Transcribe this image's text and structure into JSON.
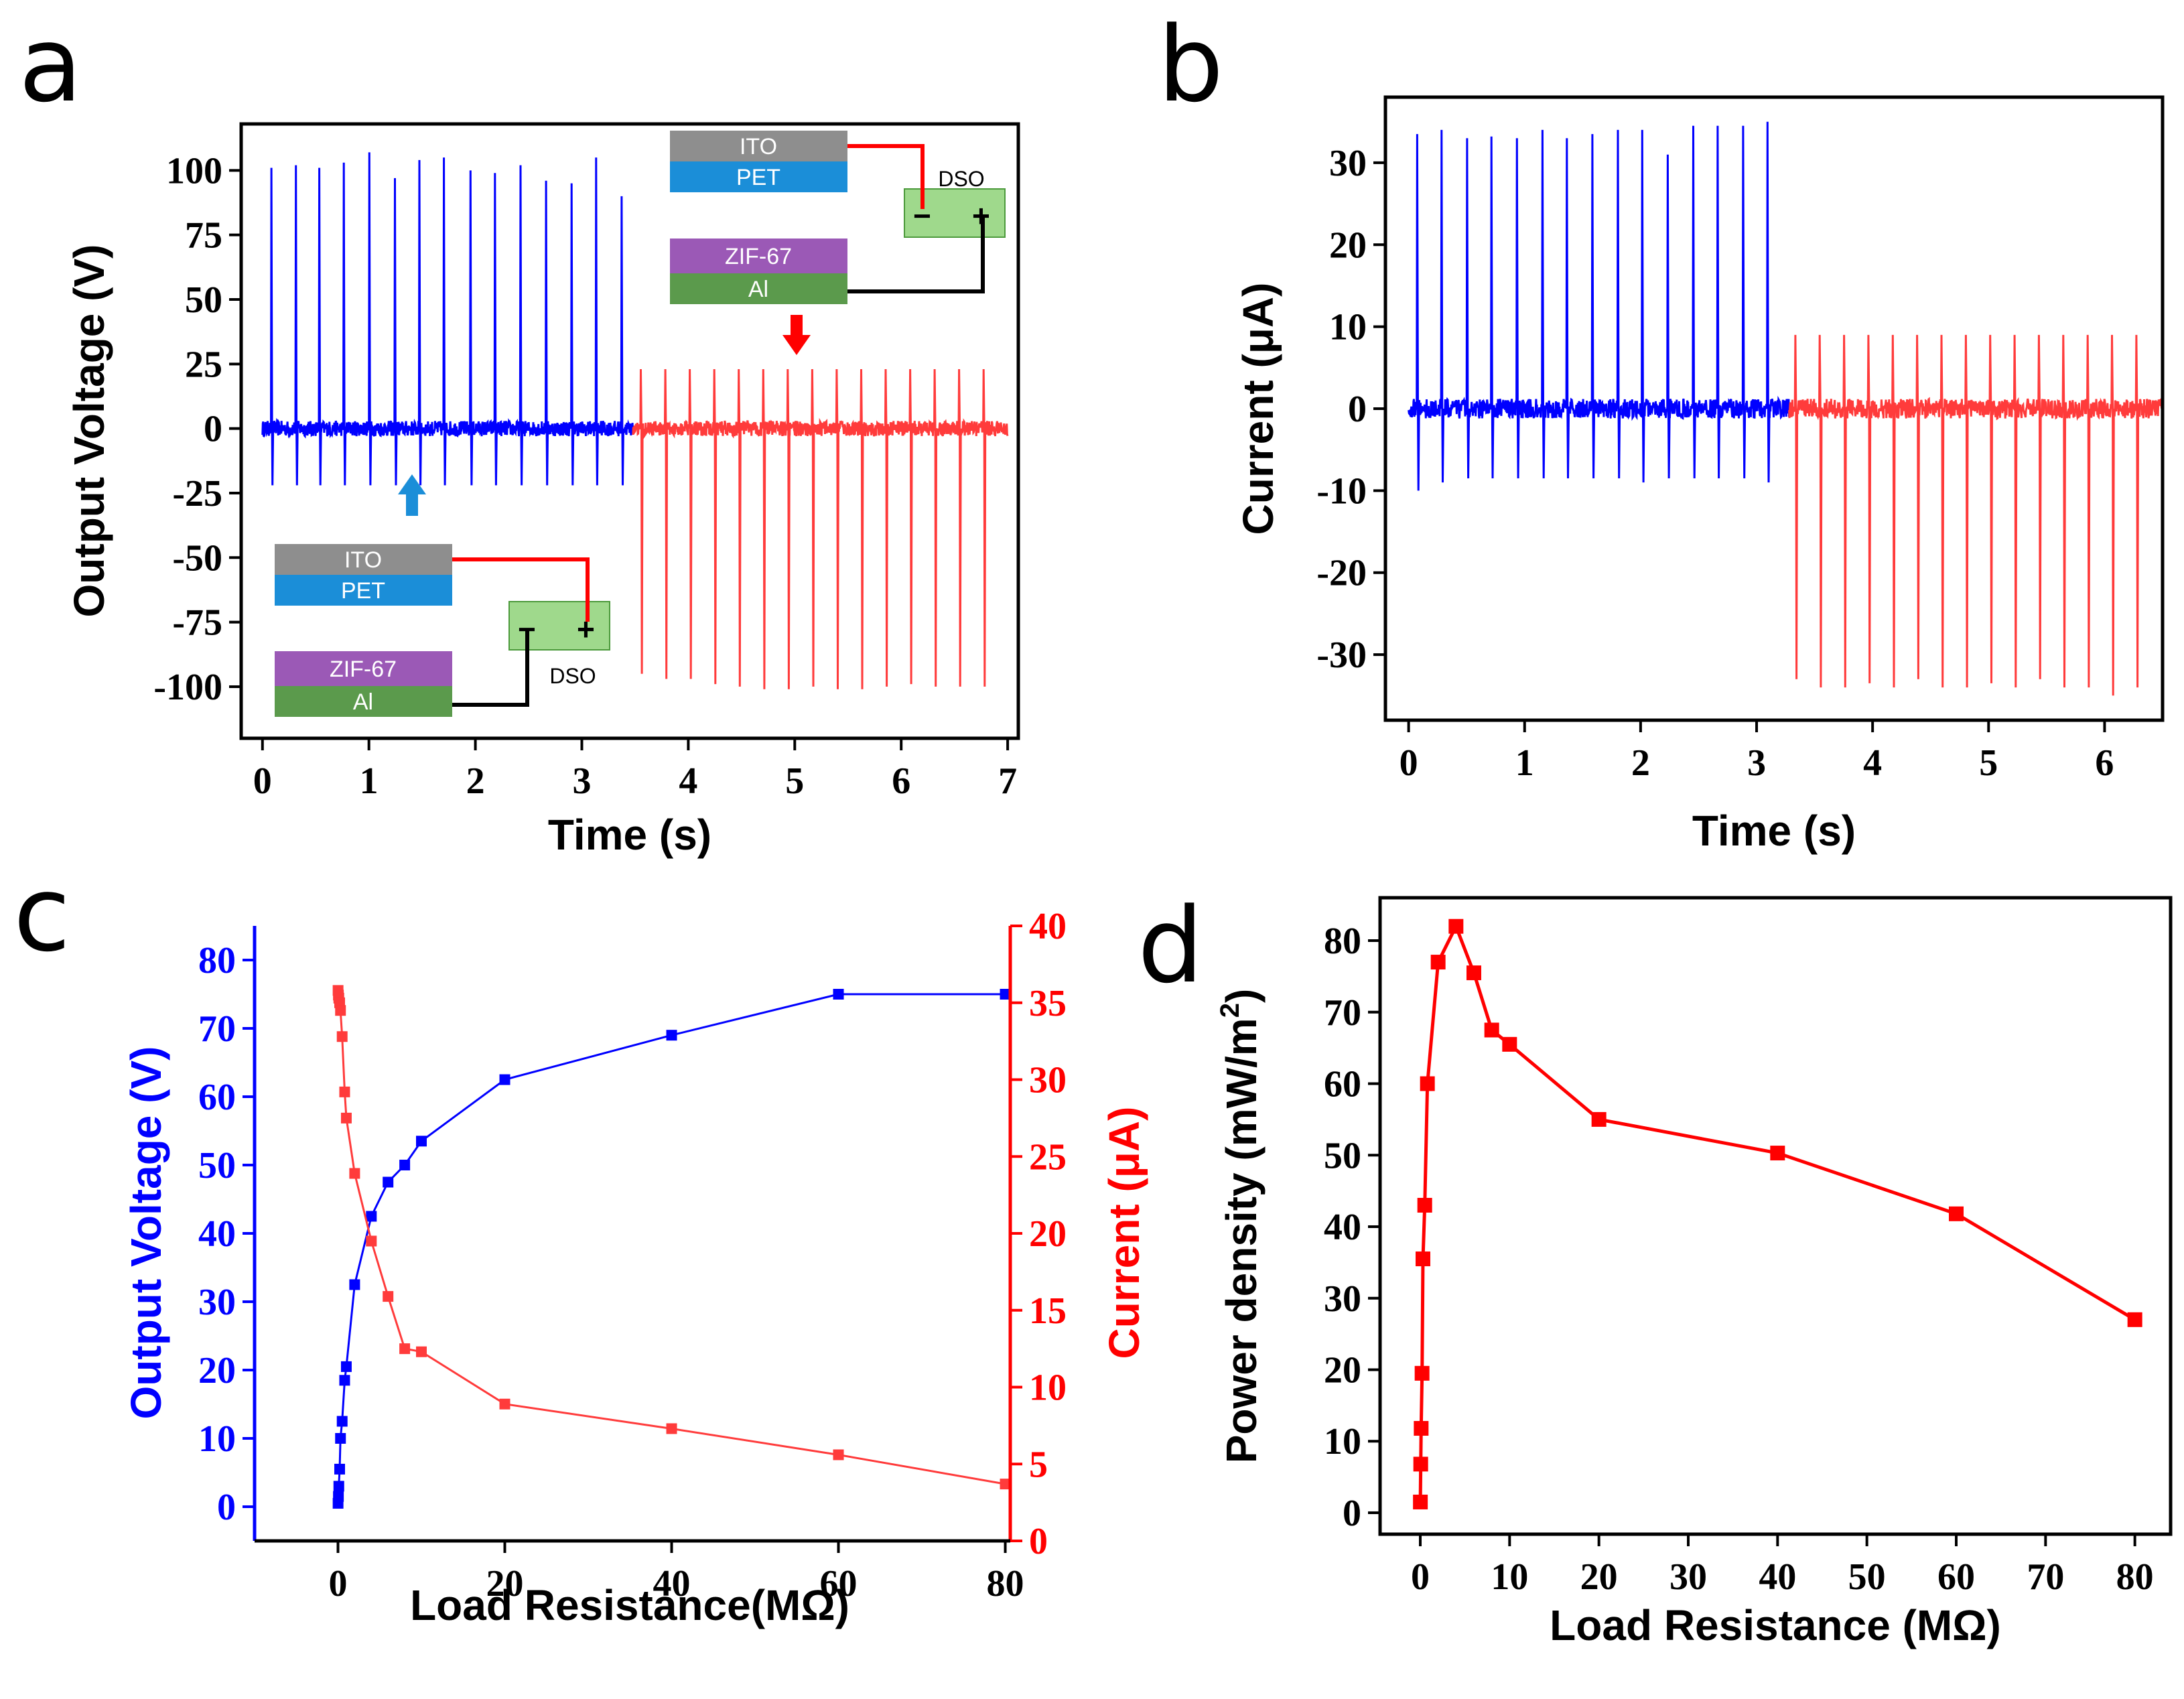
{
  "colors": {
    "blue": "#0000ff",
    "red": "#ff3b3b",
    "red_dark": "#ff0000",
    "axis": "#000000",
    "ito": "#8e8e8e",
    "pet": "#1b8ed8",
    "zif": "#9b59b6",
    "al": "#5b9a4c",
    "dso": "#9fd98c"
  },
  "panels": {
    "a": {
      "letter": "a",
      "xlabel": "Time (s)",
      "ylabel": "Output Voltage (V)",
      "xticks": [
        "0",
        "1",
        "2",
        "3",
        "4",
        "5",
        "6",
        "7"
      ],
      "yticks": [
        "-100",
        "-75",
        "-50",
        "-25",
        "0",
        "25",
        "50",
        "75",
        "100"
      ],
      "insets": {
        "top": {
          "ito": "ITO",
          "pet": "PET",
          "zif": "ZIF-67",
          "al": "Al",
          "dso": "DSO",
          "minus": "−",
          "plus": "+"
        },
        "bottom": {
          "ito": "ITO",
          "pet": "PET",
          "zif": "ZIF-67",
          "al": "Al",
          "dso": "DSO",
          "minus": "−",
          "plus": "+"
        }
      }
    },
    "b": {
      "letter": "b",
      "xlabel": "Time (s)",
      "ylabel": "Current (μA)",
      "xticks": [
        "0",
        "1",
        "2",
        "3",
        "4",
        "5",
        "6"
      ],
      "yticks": [
        "-30",
        "-20",
        "-10",
        "0",
        "10",
        "20",
        "30"
      ]
    },
    "c": {
      "letter": "c",
      "xlabel": "Load Resistance(MΩ)",
      "ylabel_left": "Output Voltage (V)",
      "ylabel_right": "Current (μA)",
      "xticks": [
        "0",
        "20",
        "40",
        "60",
        "80"
      ],
      "yticks_left": [
        "0",
        "10",
        "20",
        "30",
        "40",
        "50",
        "60",
        "70",
        "80"
      ],
      "yticks_right": [
        "0",
        "5",
        "10",
        "15",
        "20",
        "25",
        "30",
        "35",
        "40"
      ]
    },
    "d": {
      "letter": "d",
      "xlabel": "Load Resistance (MΩ)",
      "ylabel": "Power density (mW/m",
      "ylabel_sup": "2",
      "ylabel_end": ")",
      "xticks": [
        "0",
        "10",
        "20",
        "30",
        "40",
        "50",
        "60",
        "70",
        "80"
      ],
      "yticks": [
        "0",
        "10",
        "20",
        "30",
        "40",
        "50",
        "60",
        "70",
        "80"
      ]
    }
  },
  "chart_data": [
    {
      "panel": "a",
      "type": "line",
      "xlabel": "Time (s)",
      "ylabel": "Output Voltage (V)",
      "xlim": [
        -0.2,
        7.1
      ],
      "ylim": [
        -120,
        118
      ],
      "series": [
        {
          "name": "ZIF-67 (blue)",
          "color": "#0000ff",
          "t_start": 0.0,
          "t_end": 3.48,
          "spike_times": [
            0.08,
            0.31,
            0.53,
            0.76,
            1.0,
            1.24,
            1.47,
            1.7,
            1.95,
            2.18,
            2.42,
            2.66,
            2.9,
            3.13,
            3.37
          ],
          "peaks": [
            101,
            102,
            101,
            103,
            107,
            97,
            104,
            105,
            100,
            99,
            102,
            96,
            95,
            105,
            90
          ],
          "troughs": [
            -22,
            -22,
            -22,
            -22,
            -22,
            -22,
            -22,
            -22,
            -22,
            -22,
            -22,
            -22,
            -22,
            -22,
            -22
          ]
        },
        {
          "name": "red",
          "color": "#ff3b3b",
          "t_start": 3.48,
          "t_end": 7.0,
          "spike_times": [
            3.55,
            3.78,
            4.01,
            4.24,
            4.47,
            4.7,
            4.93,
            5.16,
            5.39,
            5.62,
            5.85,
            6.08,
            6.31,
            6.54,
            6.77
          ],
          "peaks": [
            23,
            23,
            23,
            23,
            23,
            23,
            23,
            23,
            23,
            23,
            23,
            23,
            23,
            23,
            23
          ],
          "troughs": [
            -95,
            -97,
            -97,
            -99,
            -100,
            -101,
            -101,
            -100,
            -101,
            -101,
            -100,
            -99,
            -100,
            -100,
            -100
          ]
        }
      ]
    },
    {
      "panel": "b",
      "type": "line",
      "xlabel": "Time (s)",
      "ylabel": "Current (μA)",
      "xlim": [
        -0.2,
        6.5
      ],
      "ylim": [
        -38,
        38
      ],
      "series": [
        {
          "name": "ZIF-67 (blue)",
          "color": "#0000ff",
          "t_start": 0.0,
          "t_end": 3.28,
          "spike_times": [
            0.07,
            0.28,
            0.5,
            0.71,
            0.93,
            1.15,
            1.36,
            1.58,
            1.8,
            2.01,
            2.23,
            2.45,
            2.66,
            2.88,
            3.09
          ],
          "peaks": [
            33.5,
            34,
            33,
            33.2,
            33,
            34,
            33,
            33.5,
            34,
            34,
            31,
            34.5,
            34.5,
            34.5,
            35
          ],
          "troughs": [
            -10,
            -9,
            -8.5,
            -8.5,
            -8.5,
            -8.5,
            -8.5,
            -8.5,
            -8.5,
            -9,
            -8.5,
            -8.5,
            -8.5,
            -8.5,
            -9
          ]
        },
        {
          "name": "red",
          "color": "#ff3b3b",
          "t_start": 3.28,
          "t_end": 6.5,
          "spike_times": [
            3.33,
            3.54,
            3.75,
            3.96,
            4.17,
            4.38,
            4.59,
            4.8,
            5.01,
            5.22,
            5.43,
            5.64,
            5.85,
            6.06,
            6.27
          ],
          "peaks": [
            9,
            9,
            9,
            9,
            9,
            9,
            9,
            9,
            9,
            9,
            9,
            9,
            9,
            9,
            9
          ],
          "troughs": [
            -33,
            -34,
            -34,
            -33.5,
            -34,
            -33,
            -34,
            -34,
            -33.5,
            -34,
            -33,
            -34,
            -34,
            -35,
            -34
          ]
        }
      ]
    },
    {
      "panel": "c",
      "type": "line",
      "xlabel": "Load Resistance(MΩ)",
      "ylabel": "Output Voltage (V)",
      "ylabel_right": "Current (μA)",
      "xlim": [
        -10,
        80.6
      ],
      "ylim": [
        -5,
        85
      ],
      "ylim_right": [
        0,
        40
      ],
      "x": [
        0.01,
        0.05,
        0.1,
        0.2,
        0.3,
        0.5,
        0.8,
        1,
        2,
        4,
        6,
        8,
        10,
        20,
        40,
        60,
        80
      ],
      "series": [
        {
          "name": "Output Voltage",
          "color": "#0000ff",
          "axis": "left",
          "values": [
            0.5,
            1.5,
            3,
            5.5,
            10,
            12.5,
            18.5,
            20.5,
            32.5,
            42.5,
            47.5,
            50,
            53.5,
            62.5,
            69,
            75,
            75
          ]
        },
        {
          "name": "Current",
          "color": "#ff3b3b",
          "axis": "right",
          "values": [
            35.8,
            35.5,
            35.3,
            35,
            34.5,
            32.8,
            29.2,
            27.5,
            23.9,
            19.5,
            15.9,
            12.5,
            12.3,
            8.9,
            7.3,
            5.6,
            3.7
          ]
        }
      ]
    },
    {
      "panel": "d",
      "type": "line",
      "xlabel": "Load Resistance (MΩ)",
      "ylabel": "Power density (mW/m2)",
      "xlim": [
        -4.5,
        84
      ],
      "ylim": [
        -3,
        86
      ],
      "x": [
        0.01,
        0.05,
        0.1,
        0.2,
        0.3,
        0.5,
        0.8,
        2,
        4,
        6,
        8,
        10,
        20,
        40,
        60,
        80
      ],
      "series": [
        {
          "name": "Power density",
          "color": "#ff0000",
          "values": [
            1.5,
            6.8,
            11.8,
            19.5,
            35.5,
            43,
            60,
            77,
            82,
            75.5,
            67.5,
            65.5,
            55,
            50.3,
            41.8,
            27
          ]
        }
      ]
    }
  ]
}
